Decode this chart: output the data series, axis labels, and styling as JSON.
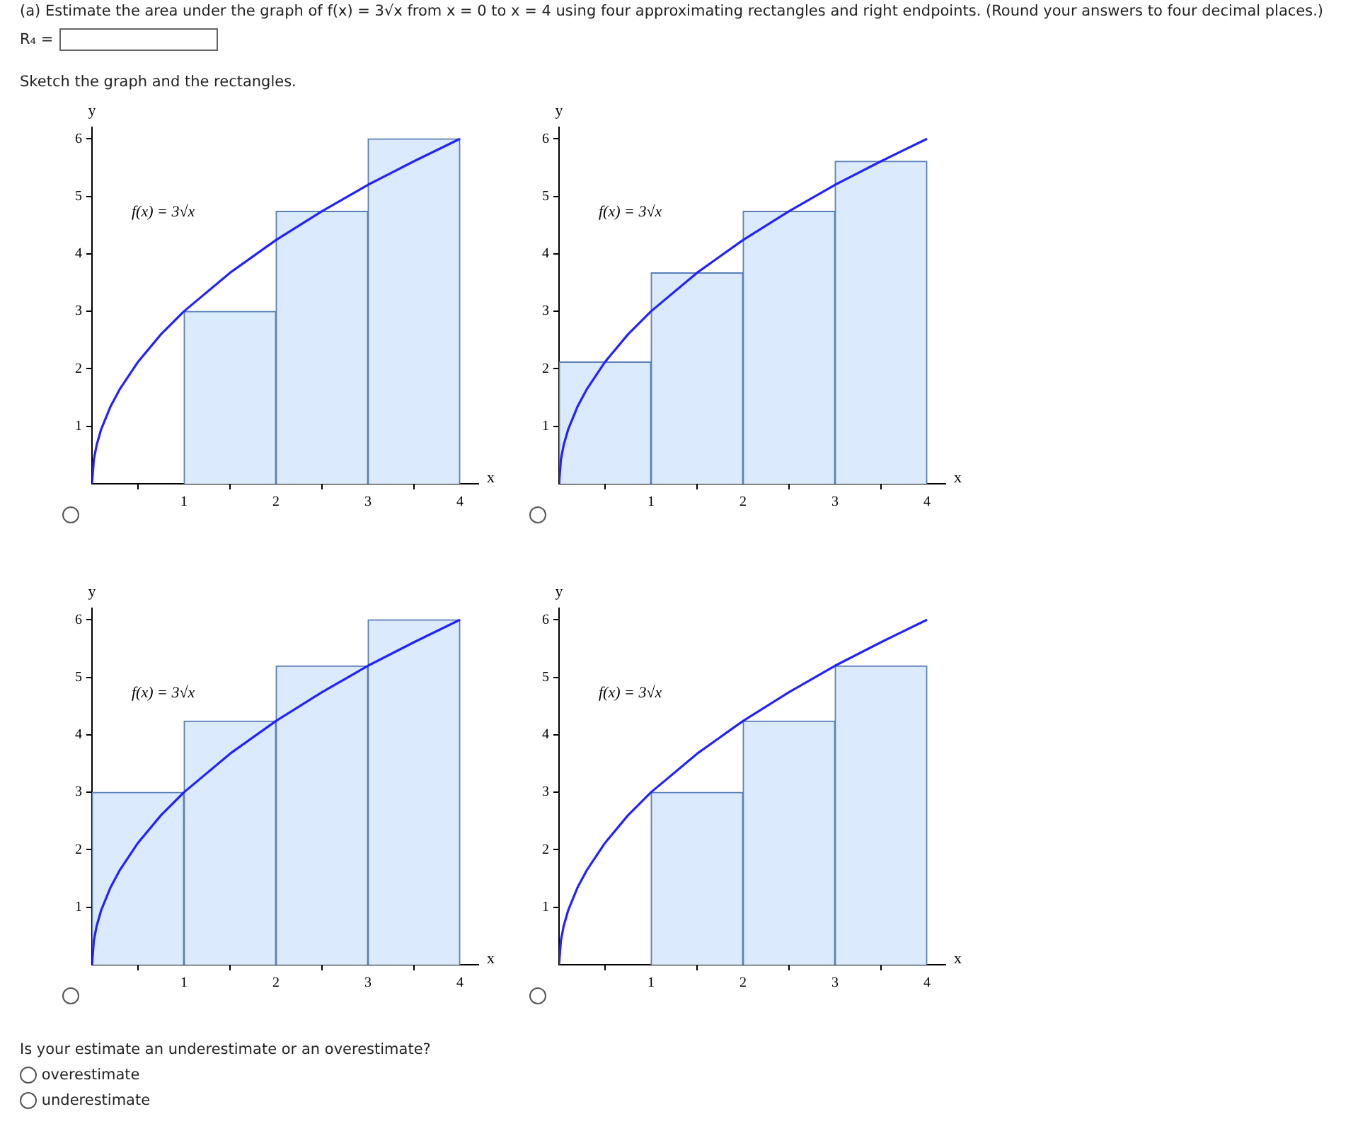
{
  "chart_data": [
    {
      "type": "other",
      "title": "(a) Estimate the area under the graph of f(x) = 3√x from x = 0 to x = 4 using four approximating rectangles and right endpoints. (Round your answers to four decimal places.)",
      "annotations": [
        "R₄ =",
        "Sketch the graph and the rectangles."
      ]
    },
    {
      "type": "histogram",
      "xlabel": "x",
      "ylabel": "y",
      "xlim": [
        0,
        4.2
      ],
      "ylim": [
        0,
        6.2
      ],
      "xticks": [
        1,
        2,
        3,
        4
      ],
      "yticks": [
        1,
        2,
        3,
        4,
        5,
        6
      ],
      "annotations": [
        "f(x) = 3√x"
      ],
      "series": [
        {
          "type": "histogram",
          "bins": [
            1,
            2,
            3,
            4
          ],
          "values": [
            3,
            4.74,
            6
          ],
          "color": "#dbeafc"
        },
        {
          "type": "line",
          "color": "#2222ff",
          "x": [
            0,
            0.02,
            0.05,
            0.1,
            0.2,
            0.3,
            0.5,
            0.75,
            1,
            1.5,
            2,
            2.5,
            3,
            3.5,
            4
          ],
          "values": [
            0,
            0.42,
            0.67,
            0.95,
            1.34,
            1.64,
            2.12,
            2.6,
            3,
            3.67,
            4.24,
            4.74,
            5.2,
            5.61,
            6
          ]
        }
      ]
    },
    {
      "type": "histogram",
      "xlabel": "x",
      "ylabel": "y",
      "xlim": [
        0,
        4.2
      ],
      "ylim": [
        0,
        6.2
      ],
      "xticks": [
        1,
        2,
        3,
        4
      ],
      "yticks": [
        1,
        2,
        3,
        4,
        5,
        6
      ],
      "annotations": [
        "f(x) = 3√x"
      ],
      "series": [
        {
          "type": "histogram",
          "bins": [
            0,
            1,
            2,
            3,
            4
          ],
          "values": [
            2.12,
            3.67,
            4.74,
            5.61
          ],
          "color": "#dbeafc"
        },
        {
          "type": "line",
          "color": "#2222ff",
          "x": [
            0,
            0.02,
            0.05,
            0.1,
            0.2,
            0.3,
            0.5,
            0.75,
            1,
            1.5,
            2,
            2.5,
            3,
            3.5,
            4
          ],
          "values": [
            0,
            0.42,
            0.67,
            0.95,
            1.34,
            1.64,
            2.12,
            2.6,
            3,
            3.67,
            4.24,
            4.74,
            5.2,
            5.61,
            6
          ]
        }
      ]
    },
    {
      "type": "histogram",
      "xlabel": "x",
      "ylabel": "y",
      "xlim": [
        0,
        4.2
      ],
      "ylim": [
        0,
        6.2
      ],
      "xticks": [
        1,
        2,
        3,
        4
      ],
      "yticks": [
        1,
        2,
        3,
        4,
        5,
        6
      ],
      "annotations": [
        "f(x) = 3√x"
      ],
      "series": [
        {
          "type": "histogram",
          "bins": [
            0,
            1,
            2,
            3,
            4
          ],
          "values": [
            3,
            4.24,
            5.2,
            6
          ],
          "color": "#dbeafc"
        },
        {
          "type": "line",
          "color": "#2222ff",
          "x": [
            0,
            0.02,
            0.05,
            0.1,
            0.2,
            0.3,
            0.5,
            0.75,
            1,
            1.5,
            2,
            2.5,
            3,
            3.5,
            4
          ],
          "values": [
            0,
            0.42,
            0.67,
            0.95,
            1.34,
            1.64,
            2.12,
            2.6,
            3,
            3.67,
            4.24,
            4.74,
            5.2,
            5.61,
            6
          ]
        }
      ]
    },
    {
      "type": "histogram",
      "xlabel": "x",
      "ylabel": "y",
      "xlim": [
        0,
        4.2
      ],
      "ylim": [
        0,
        6.2
      ],
      "xticks": [
        1,
        2,
        3,
        4
      ],
      "yticks": [
        1,
        2,
        3,
        4,
        5,
        6
      ],
      "annotations": [
        "f(x) = 3√x"
      ],
      "series": [
        {
          "type": "histogram",
          "bins": [
            1,
            2,
            3,
            4
          ],
          "values": [
            3,
            4.24,
            5.2
          ],
          "color": "#dbeafc"
        },
        {
          "type": "line",
          "color": "#2222ff",
          "x": [
            0,
            0.02,
            0.05,
            0.1,
            0.2,
            0.3,
            0.5,
            0.75,
            1,
            1.5,
            2,
            2.5,
            3,
            3.5,
            4
          ],
          "values": [
            0,
            0.42,
            0.67,
            0.95,
            1.34,
            1.64,
            2.12,
            2.6,
            3,
            3.67,
            4.24,
            4.74,
            5.2,
            5.61,
            6
          ]
        }
      ]
    },
    {
      "type": "other",
      "title": "Is your estimate an underestimate or an overestimate?",
      "annotations": [
        "overestimate",
        "underestimate"
      ]
    }
  ]
}
